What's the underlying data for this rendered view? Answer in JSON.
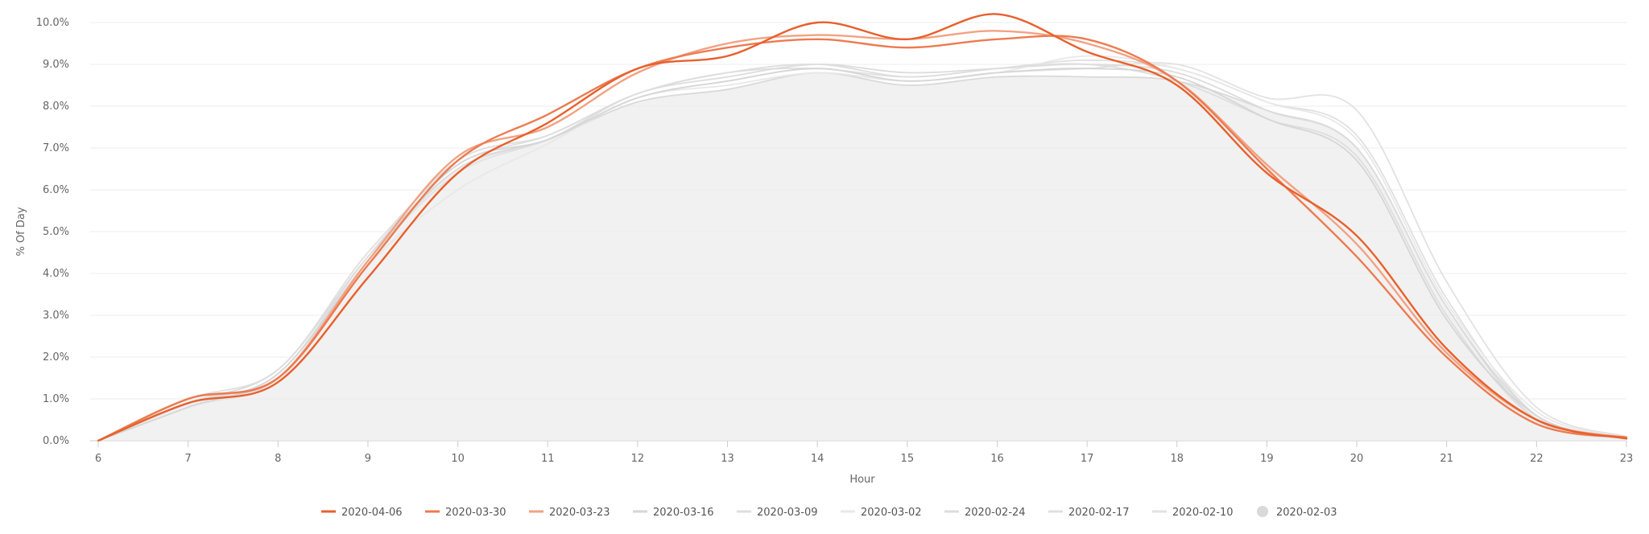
{
  "chart_data": {
    "type": "line",
    "title": "",
    "xlabel": "Hour",
    "ylabel": "% Of Day",
    "xlim": [
      6,
      23
    ],
    "ylim": [
      0,
      10
    ],
    "y_tick_labels": [
      "0.0%",
      "1.0%",
      "2.0%",
      "3.0%",
      "4.0%",
      "5.0%",
      "6.0%",
      "7.0%",
      "8.0%",
      "9.0%",
      "10.0%"
    ],
    "x_tick_labels": [
      "6",
      "7",
      "8",
      "9",
      "10",
      "11",
      "12",
      "13",
      "14",
      "15",
      "16",
      "17",
      "18",
      "19",
      "20",
      "21",
      "22",
      "23"
    ],
    "grid": true,
    "legend_position": "bottom",
    "x": [
      6,
      7,
      8,
      9,
      10,
      11,
      12,
      13,
      14,
      15,
      16,
      17,
      18,
      19,
      20,
      21,
      22,
      23
    ],
    "series": [
      {
        "name": "2020-04-06",
        "color": "#e8602c",
        "values": [
          0,
          0.9,
          1.4,
          3.9,
          6.4,
          7.6,
          8.9,
          9.2,
          10.0,
          9.6,
          10.2,
          9.3,
          8.5,
          6.4,
          4.9,
          2.2,
          0.5,
          0.05
        ]
      },
      {
        "name": "2020-03-30",
        "color": "#ec7b50",
        "values": [
          0,
          1.0,
          1.5,
          4.2,
          6.7,
          7.8,
          8.9,
          9.4,
          9.6,
          9.4,
          9.6,
          9.6,
          8.6,
          6.5,
          4.4,
          2.0,
          0.4,
          0.08
        ]
      },
      {
        "name": "2020-03-23",
        "color": "#f2a283",
        "values": [
          0,
          1.0,
          1.5,
          4.3,
          6.8,
          7.5,
          8.8,
          9.5,
          9.7,
          9.6,
          9.8,
          9.5,
          8.6,
          6.6,
          4.7,
          2.1,
          0.5,
          0.07
        ]
      },
      {
        "name": "2020-03-16",
        "color": "#d6d6d6",
        "values": [
          0,
          0.8,
          1.6,
          4.3,
          6.6,
          7.2,
          8.2,
          8.6,
          8.9,
          8.6,
          8.8,
          8.9,
          8.7,
          7.7,
          6.7,
          2.9,
          0.6,
          0.05
        ]
      },
      {
        "name": "2020-03-09",
        "color": "#dedede",
        "values": [
          0,
          0.9,
          1.6,
          4.4,
          6.7,
          7.3,
          8.3,
          8.8,
          9.0,
          8.7,
          8.9,
          9.0,
          8.6,
          7.7,
          6.8,
          3.0,
          0.5,
          0.06
        ]
      },
      {
        "name": "2020-03-02",
        "color": "#e8e8e8",
        "values": [
          0,
          0.8,
          1.5,
          4.2,
          6.0,
          7.1,
          8.2,
          8.5,
          8.8,
          8.6,
          8.8,
          9.2,
          8.9,
          8.1,
          7.2,
          3.3,
          0.7,
          0.08
        ]
      },
      {
        "name": "2020-02-24",
        "color": "#dcdcdc",
        "values": [
          0,
          0.9,
          1.7,
          4.4,
          6.5,
          7.2,
          8.3,
          8.7,
          9.0,
          8.8,
          8.9,
          9.0,
          8.8,
          7.9,
          7.0,
          3.2,
          0.5,
          0.06
        ]
      },
      {
        "name": "2020-02-17",
        "color": "#e0e0e0",
        "values": [
          0,
          1.0,
          1.7,
          4.5,
          6.6,
          7.3,
          8.3,
          8.8,
          8.9,
          8.7,
          8.9,
          9.1,
          8.9,
          8.1,
          7.3,
          3.4,
          0.6,
          0.07
        ]
      },
      {
        "name": "2020-02-10",
        "color": "#e2e2e2",
        "values": [
          0,
          0.8,
          1.5,
          4.3,
          6.4,
          7.2,
          8.2,
          8.6,
          8.9,
          8.6,
          8.8,
          8.9,
          9.0,
          8.2,
          7.9,
          3.8,
          0.8,
          0.1
        ]
      },
      {
        "name": "2020-02-03",
        "color": "#d9d9d9",
        "area": true,
        "values": [
          0,
          0.9,
          1.5,
          4.3,
          6.5,
          7.2,
          8.1,
          8.4,
          8.8,
          8.5,
          8.7,
          8.7,
          8.6,
          7.9,
          7.0,
          3.2,
          0.6,
          0.05
        ]
      }
    ]
  }
}
